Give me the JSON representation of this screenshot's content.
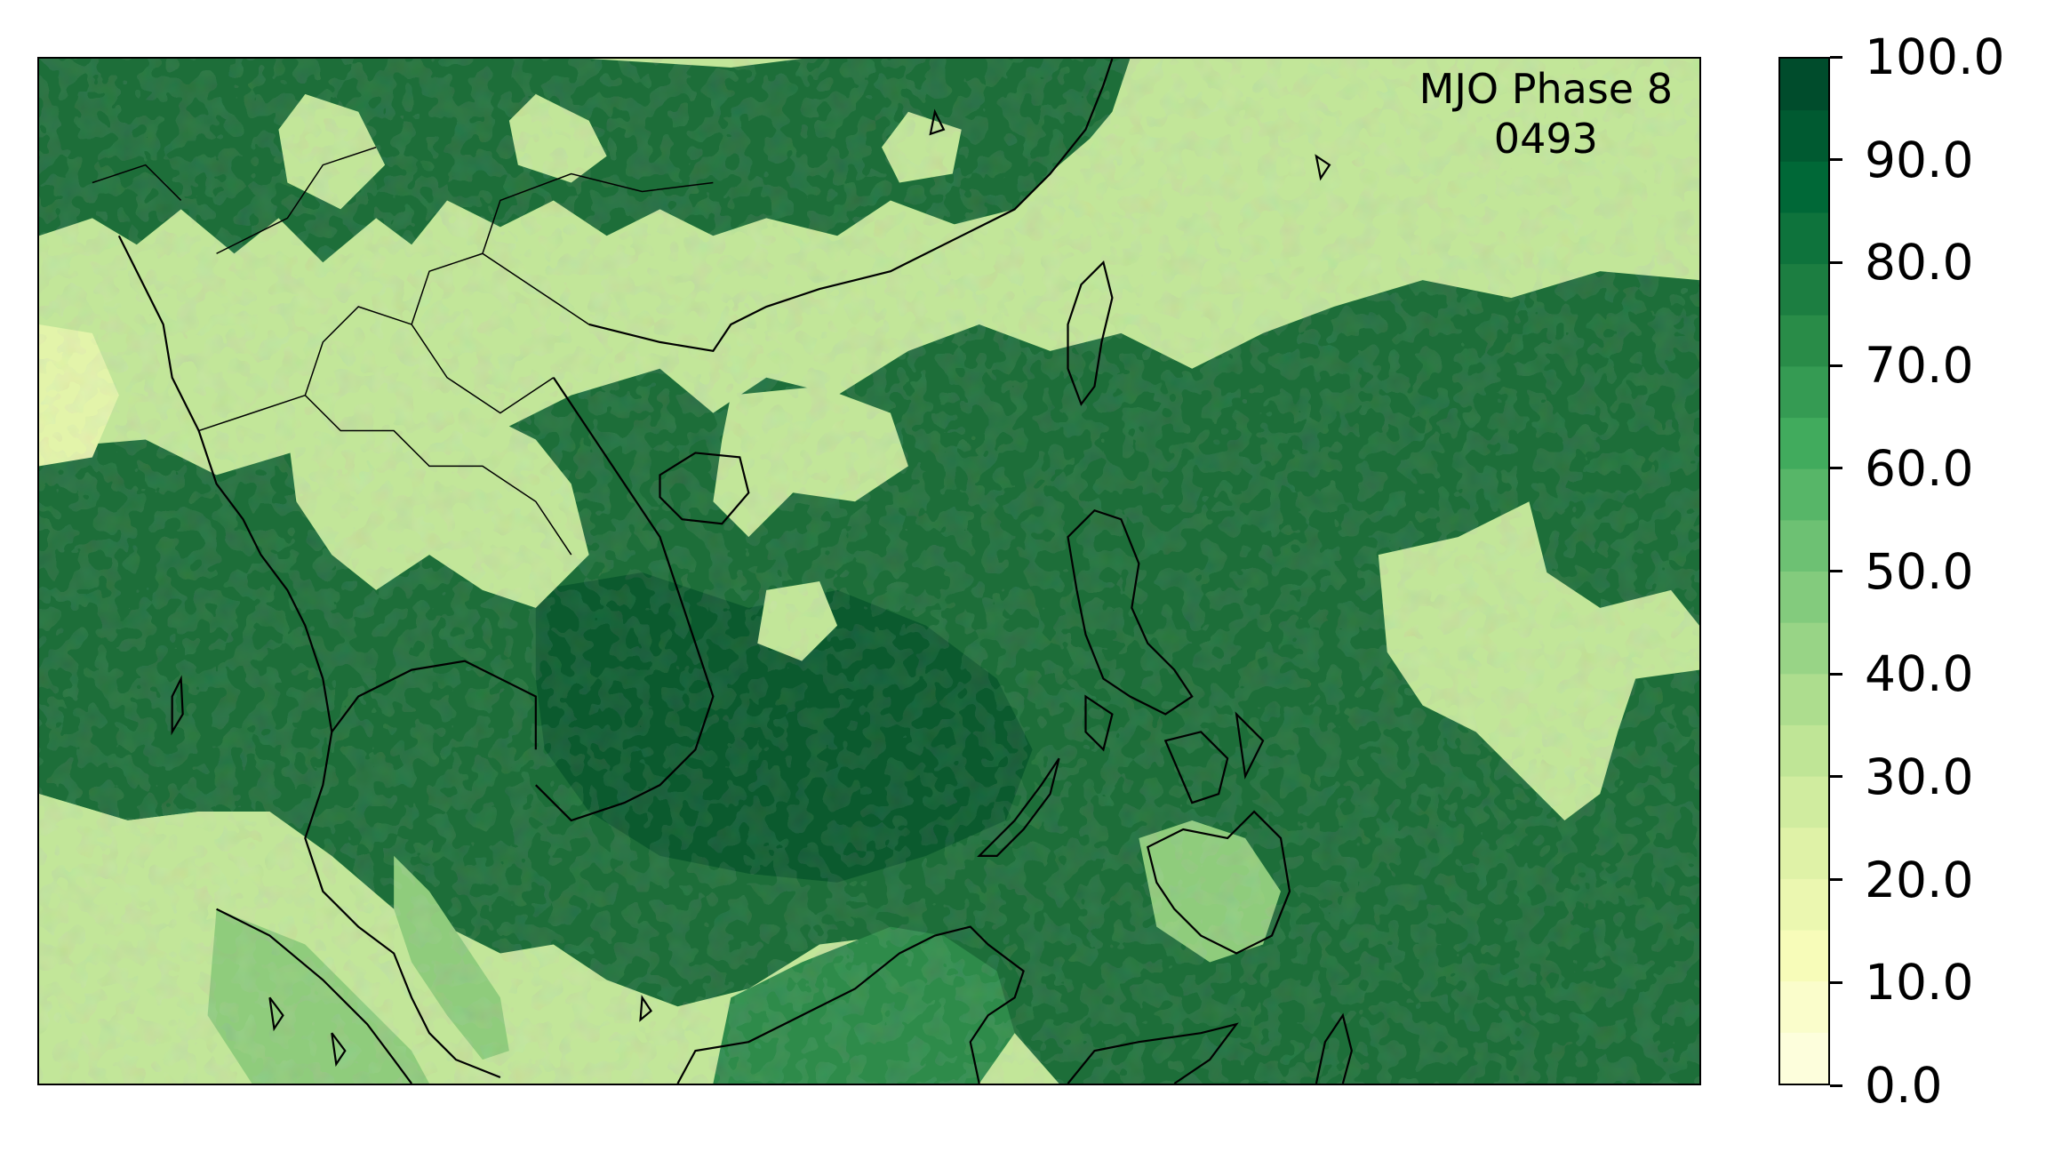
{
  "annotation": {
    "line1": "MJO Phase 8",
    "line2": "0493"
  },
  "colorbar": {
    "ticks": [
      "0.0",
      "10.0",
      "20.0",
      "30.0",
      "40.0",
      "50.0",
      "60.0",
      "70.0",
      "80.0",
      "90.0",
      "100.0"
    ],
    "range": [
      0,
      100
    ],
    "colormap": "YlGn",
    "colors": [
      "#ffffe5",
      "#f7fcb9",
      "#d9f0a3",
      "#addd8e",
      "#78c679",
      "#41ab5d",
      "#238443",
      "#006837",
      "#004529"
    ]
  },
  "map": {
    "palette": {
      "very_low": "#e3f4aa",
      "low": "#c2e699",
      "mid": "#8fcc7c",
      "high": "#2e8b4a",
      "very_high": "#1d6e39",
      "max": "#0b5a2e"
    },
    "coastline_color": "#000000"
  }
}
